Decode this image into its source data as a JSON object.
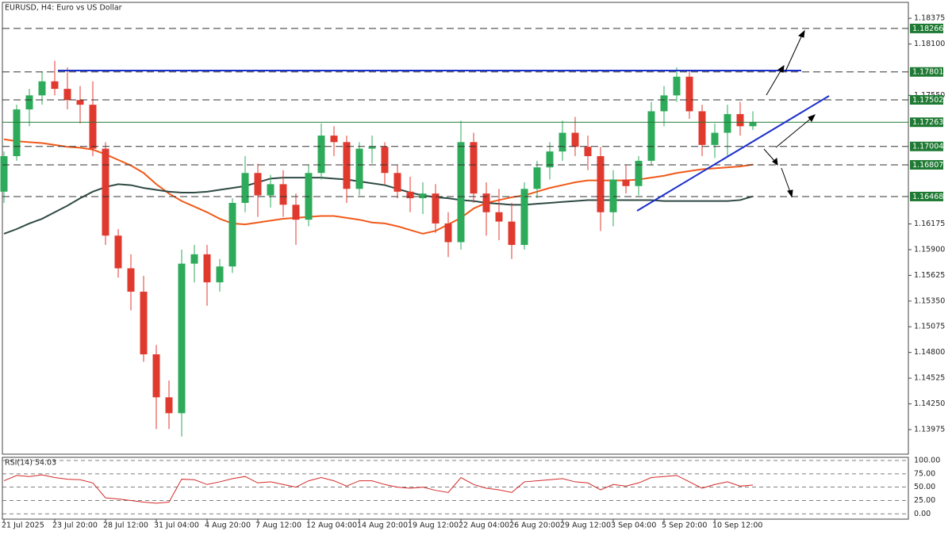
{
  "chart_data": [
    {
      "type": "candlestick",
      "title": "EURUSD, H4:  Euro vs US Dollar",
      "categories": [
        "21 Jul 2025",
        null,
        null,
        null,
        "23 Jul 20:00",
        null,
        null,
        null,
        "28 Jul 12:00",
        null,
        null,
        null,
        "31 Jul 04:00",
        null,
        null,
        null,
        "4 Aug 20:00",
        null,
        null,
        null,
        "7 Aug 12:00",
        null,
        null,
        null,
        "12 Aug 04:00",
        null,
        null,
        null,
        "14 Aug 20:00",
        null,
        null,
        null,
        "19 Aug 12:00",
        null,
        null,
        null,
        "22 Aug 04:00",
        null,
        null,
        null,
        "26 Aug 20:00",
        null,
        null,
        null,
        "29 Aug 12:00",
        null,
        null,
        null,
        "3 Sep 04:00",
        null,
        null,
        null,
        "5 Sep 20:00",
        null,
        null,
        null,
        "10 Sep 12:00",
        null,
        null,
        null
      ],
      "ohlc": [
        [
          1.1652,
          1.1695,
          1.164,
          1.169
        ],
        [
          1.169,
          1.1745,
          1.1685,
          1.174
        ],
        [
          1.174,
          1.1762,
          1.1722,
          1.1755
        ],
        [
          1.1755,
          1.178,
          1.1745,
          1.177
        ],
        [
          1.177,
          1.1792,
          1.1755,
          1.1762
        ],
        [
          1.1762,
          1.1785,
          1.174,
          1.175
        ],
        [
          1.175,
          1.1765,
          1.1725,
          1.1745
        ],
        [
          1.1745,
          1.177,
          1.169,
          1.1698
        ],
        [
          1.1698,
          1.1705,
          1.1595,
          1.1605
        ],
        [
          1.1605,
          1.1612,
          1.156,
          1.157
        ],
        [
          1.157,
          1.1585,
          1.1525,
          1.1545
        ],
        [
          1.1545,
          1.1562,
          1.147,
          1.1478
        ],
        [
          1.1478,
          1.1488,
          1.1398,
          1.1432
        ],
        [
          1.1432,
          1.145,
          1.1398,
          1.1415
        ],
        [
          1.1415,
          1.159,
          1.139,
          1.1575
        ],
        [
          1.1575,
          1.1595,
          1.1555,
          1.1585
        ],
        [
          1.1585,
          1.1595,
          1.153,
          1.1555
        ],
        [
          1.1555,
          1.158,
          1.1545,
          1.1572
        ],
        [
          1.1572,
          1.1645,
          1.1565,
          1.164
        ],
        [
          1.164,
          1.169,
          1.163,
          1.1672
        ],
        [
          1.1672,
          1.1682,
          1.1625,
          1.1648
        ],
        [
          1.1648,
          1.167,
          1.1635,
          1.166
        ],
        [
          1.166,
          1.1675,
          1.1625,
          1.1638
        ],
        [
          1.1638,
          1.165,
          1.1595,
          1.1622
        ],
        [
          1.1622,
          1.168,
          1.1615,
          1.1672
        ],
        [
          1.1672,
          1.1725,
          1.1665,
          1.1712
        ],
        [
          1.1712,
          1.1722,
          1.169,
          1.1705
        ],
        [
          1.1705,
          1.1712,
          1.164,
          1.1655
        ],
        [
          1.1655,
          1.1705,
          1.1648,
          1.1698
        ],
        [
          1.1698,
          1.1712,
          1.1682,
          1.17
        ],
        [
          1.17,
          1.1705,
          1.166,
          1.1672
        ],
        [
          1.1672,
          1.168,
          1.1645,
          1.1652
        ],
        [
          1.1652,
          1.1668,
          1.163,
          1.1645
        ],
        [
          1.1645,
          1.1662,
          1.1628,
          1.165
        ],
        [
          1.165,
          1.166,
          1.1608,
          1.1618
        ],
        [
          1.1618,
          1.163,
          1.1582,
          1.1598
        ],
        [
          1.1598,
          1.1728,
          1.159,
          1.1705
        ],
        [
          1.1705,
          1.1715,
          1.164,
          1.165
        ],
        [
          1.165,
          1.1662,
          1.1605,
          1.163
        ],
        [
          1.163,
          1.1655,
          1.16,
          1.162
        ],
        [
          1.162,
          1.164,
          1.158,
          1.1595
        ],
        [
          1.1595,
          1.1662,
          1.159,
          1.1655
        ],
        [
          1.1655,
          1.1685,
          1.1645,
          1.1678
        ],
        [
          1.1678,
          1.1705,
          1.1665,
          1.1695
        ],
        [
          1.1695,
          1.1728,
          1.1685,
          1.1715
        ],
        [
          1.1715,
          1.1732,
          1.169,
          1.17
        ],
        [
          1.17,
          1.1712,
          1.1675,
          1.169
        ],
        [
          1.169,
          1.17,
          1.161,
          1.163
        ],
        [
          1.163,
          1.1675,
          1.1615,
          1.1665
        ],
        [
          1.1665,
          1.168,
          1.165,
          1.1658
        ],
        [
          1.1658,
          1.169,
          1.1648,
          1.1685
        ],
        [
          1.1685,
          1.1748,
          1.168,
          1.1738
        ],
        [
          1.1738,
          1.1765,
          1.1722,
          1.1755
        ],
        [
          1.1755,
          1.1785,
          1.1748,
          1.1775
        ],
        [
          1.1775,
          1.1782,
          1.173,
          1.1738
        ],
        [
          1.1738,
          1.1745,
          1.169,
          1.1702
        ],
        [
          1.1702,
          1.1725,
          1.1688,
          1.1715
        ],
        [
          1.1715,
          1.1745,
          1.169,
          1.1735
        ],
        [
          1.1735,
          1.1748,
          1.1712,
          1.1722
        ],
        [
          1.1722,
          1.1738,
          1.1718,
          1.1726
        ]
      ],
      "up_color": "#2eab5a",
      "down_color": "#e03a2f",
      "lines": [
        {
          "color": "#f05a1a",
          "values": [
            1.1708,
            1.1706,
            1.1705,
            1.1704,
            1.1702,
            1.17,
            1.1699,
            1.1697,
            1.1692,
            1.1686,
            1.168,
            1.1672,
            1.166,
            1.165,
            1.1642,
            1.1636,
            1.163,
            1.1623,
            1.1618,
            1.1617,
            1.1619,
            1.1621,
            1.1623,
            1.1624,
            1.1625,
            1.1626,
            1.1626,
            1.1624,
            1.1622,
            1.1619,
            1.1618,
            1.1615,
            1.1611,
            1.1607,
            1.161,
            1.1617,
            1.1624,
            1.1634,
            1.164,
            1.1643,
            1.1646,
            1.1648,
            1.1652,
            1.1656,
            1.1659,
            1.1662,
            1.1664,
            1.1664,
            1.1664,
            1.1664,
            1.1665,
            1.1667,
            1.1669,
            1.1672,
            1.1674,
            1.1676,
            1.1677,
            1.1678,
            1.1679,
            1.1681
          ]
        },
        {
          "color": "#2f4a44",
          "values": [
            1.1607,
            1.1612,
            1.1618,
            1.1623,
            1.163,
            1.1637,
            1.1645,
            1.1652,
            1.1657,
            1.166,
            1.1659,
            1.1656,
            1.1654,
            1.1652,
            1.1651,
            1.1651,
            1.1652,
            1.1654,
            1.1656,
            1.1658,
            1.1662,
            1.1666,
            1.1667,
            1.1667,
            1.1667,
            1.1667,
            1.1666,
            1.1665,
            1.1663,
            1.1661,
            1.1659,
            1.1655,
            1.1651,
            1.1648,
            1.1646,
            1.1645,
            1.1643,
            1.1642,
            1.164,
            1.1639,
            1.1638,
            1.1638,
            1.1639,
            1.164,
            1.1641,
            1.1642,
            1.1643,
            1.1643,
            1.1643,
            1.1643,
            1.1643,
            1.1643,
            1.1642,
            1.1642,
            1.1642,
            1.1642,
            1.1642,
            1.1642,
            1.1643,
            1.1647
          ]
        }
      ],
      "ylim": [
        1.13712,
        1.18545
      ],
      "yticks": [
        1.18375,
        {
          "value": 1.181,
          "label": "1.18100"
        },
        {
          "value": 1.1755,
          "label": "1.17550"
        },
        1.16175,
        {
          "value": 1.159,
          "label": "1.15900"
        },
        1.15625,
        {
          "value": 1.1535,
          "label": "1.15350"
        },
        1.15075,
        {
          "value": 1.148,
          "label": "1.14800"
        },
        1.14525,
        {
          "value": 1.1425,
          "label": "1.14250"
        },
        1.13975
      ],
      "levels": [
        {
          "value": 1.18266,
          "style": "dashed"
        },
        {
          "value": 1.17801,
          "style": "dashed"
        },
        {
          "value": 1.17502,
          "style": "dashed"
        },
        {
          "value": 1.17263,
          "style": "solid"
        },
        {
          "value": 1.17004,
          "style": "dashed"
        },
        {
          "value": 1.16807,
          "style": "dashed"
        },
        {
          "value": 1.16468,
          "style": "dashed"
        }
      ],
      "level_color": "#1f7a34"
    },
    {
      "type": "line",
      "title": "RSI(14) 54.03",
      "color": "#d42a2a",
      "values": [
        62,
        72,
        70,
        73,
        68,
        65,
        64,
        58,
        30,
        28,
        25,
        22,
        20,
        22,
        65,
        64,
        55,
        60,
        66,
        70,
        58,
        60,
        55,
        50,
        62,
        68,
        62,
        52,
        62,
        62,
        55,
        50,
        48,
        50,
        44,
        40,
        68,
        55,
        48,
        45,
        40,
        60,
        62,
        64,
        66,
        60,
        58,
        45,
        55,
        52,
        58,
        68,
        70,
        72,
        60,
        48,
        55,
        60,
        52,
        54.03
      ],
      "ylim": [
        -10,
        106
      ],
      "yticks": [
        {
          "value": 100,
          "label": "100.00"
        },
        {
          "value": 75,
          "label": "75.00"
        },
        {
          "value": 50,
          "label": "50.00"
        },
        {
          "value": 25,
          "label": "25.00"
        },
        {
          "value": 0,
          "label": "0.00"
        }
      ]
    }
  ]
}
